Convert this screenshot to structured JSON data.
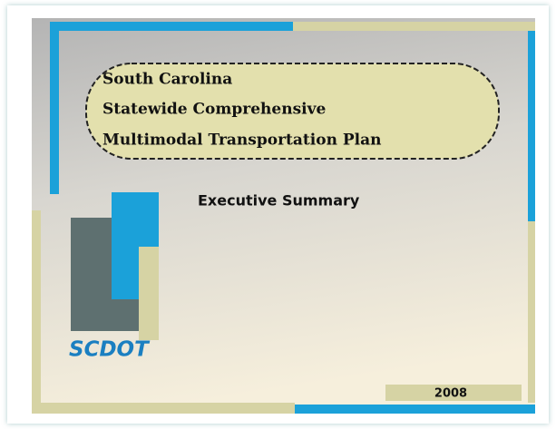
{
  "cover": {
    "title_lines": [
      "South Carolina",
      "Statewide Comprehensive",
      "Multimodal Transportation Plan"
    ],
    "subtitle": "Executive Summary",
    "logo": "SCDOT",
    "year": "2008"
  }
}
